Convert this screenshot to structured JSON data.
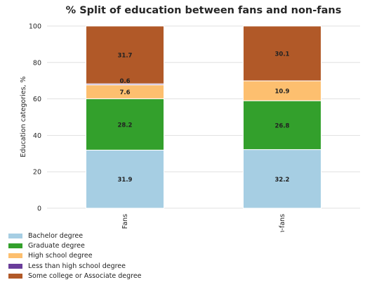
{
  "chart_data": {
    "type": "bar",
    "stacked": true,
    "title": "% Split of education between fans and non-fans",
    "xlabel": "",
    "ylabel": "Education categories, %",
    "ylim": [
      0,
      100
    ],
    "yticks": [
      0,
      20,
      40,
      60,
      80,
      100
    ],
    "grid": true,
    "legend_position": "bottom-left",
    "categories": [
      "Fans",
      "Non-fans"
    ],
    "series": [
      {
        "name": "Bachelor degree",
        "color": "#a6cee3",
        "values": [
          31.9,
          32.2
        ],
        "labels": [
          "31.9",
          "32.2"
        ]
      },
      {
        "name": "Graduate degree",
        "color": "#33a02c",
        "values": [
          28.2,
          26.8
        ],
        "labels": [
          "28.2",
          "26.8"
        ]
      },
      {
        "name": "High school degree",
        "color": "#fdbf6f",
        "values": [
          7.6,
          10.9
        ],
        "labels": [
          "7.6",
          "10.9"
        ]
      },
      {
        "name": "Less than high school degree",
        "color": "#6a3d9a",
        "values": [
          0.6,
          0.0
        ],
        "labels": [
          "0.6",
          ""
        ]
      },
      {
        "name": "Some college or Associate degree",
        "color": "#b15928",
        "values": [
          31.7,
          30.1
        ],
        "labels": [
          "31.7",
          "30.1"
        ]
      }
    ]
  }
}
